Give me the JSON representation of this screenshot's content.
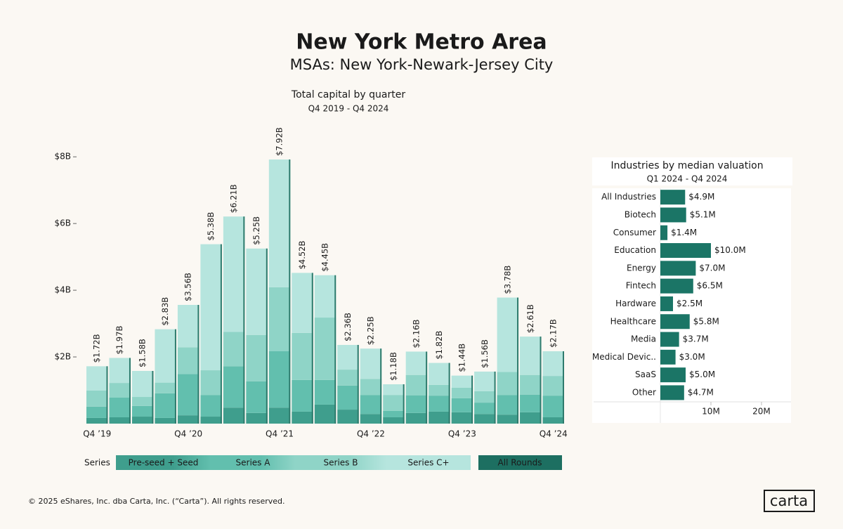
{
  "header": {
    "title": "New York Metro Area",
    "subtitle": "MSAs: New York-Newark-Jersey City"
  },
  "chart_data": [
    {
      "type": "bar",
      "title": "Total capital by quarter",
      "subtitle": "Q4 2019 - Q4 2024",
      "categories": [
        "Q4 ’19",
        null,
        null,
        null,
        "Q4 ’20",
        null,
        null,
        null,
        "Q4 ’21",
        null,
        null,
        null,
        "Q4 ’22",
        null,
        null,
        null,
        "Q4 ’23",
        null,
        null,
        null,
        "Q4 ’24"
      ],
      "series": [
        {
          "name": "Pre-seed + Seed",
          "color": "#3f9e8d",
          "values": [
            0.17,
            0.19,
            0.21,
            0.17,
            0.25,
            0.21,
            0.48,
            0.32,
            0.48,
            0.36,
            0.57,
            0.42,
            0.29,
            0.19,
            0.32,
            0.36,
            0.34,
            0.29,
            0.27,
            0.34,
            0.19
          ]
        },
        {
          "name": "Series A",
          "color": "#62bfae",
          "values": [
            0.34,
            0.59,
            0.32,
            0.74,
            1.24,
            0.65,
            1.24,
            0.95,
            1.69,
            0.95,
            0.74,
            0.72,
            0.57,
            0.19,
            0.53,
            0.48,
            0.42,
            0.34,
            0.59,
            0.53,
            0.65
          ]
        },
        {
          "name": "Series B",
          "color": "#8fd4c7",
          "values": [
            0.48,
            0.44,
            0.27,
            0.32,
            0.8,
            0.74,
            1.03,
            1.39,
            1.92,
            1.41,
            1.87,
            0.48,
            0.48,
            0.48,
            0.61,
            0.32,
            0.32,
            0.34,
            0.69,
            0.59,
            0.59
          ]
        },
        {
          "name": "Series C+",
          "color": "#b6e5de",
          "values": [
            0.73,
            0.75,
            0.78,
            1.6,
            1.27,
            3.78,
            3.46,
            2.59,
            3.83,
            1.8,
            1.27,
            0.74,
            0.91,
            0.32,
            0.7,
            0.66,
            0.36,
            0.59,
            2.23,
            1.15,
            0.74
          ]
        }
      ],
      "total_values": [
        1.72,
        1.97,
        1.58,
        2.83,
        3.56,
        5.38,
        6.21,
        5.25,
        7.92,
        4.52,
        4.45,
        2.36,
        2.25,
        1.18,
        2.16,
        1.82,
        1.44,
        1.56,
        3.78,
        2.61,
        2.17
      ],
      "total_labels": [
        "$1.72B",
        "$1.97B",
        "$1.58B",
        "$2.83B",
        "$3.56B",
        "$5.38B",
        "$6.21B",
        "$5.25B",
        "$7.92B",
        "$4.52B",
        "$4.45B",
        "$2.36B",
        "$2.25B",
        "$1.18B",
        "$2.16B",
        "$1.82B",
        "$1.44B",
        "$1.56B",
        "$3.78B",
        "$2.61B",
        "$2.17B"
      ],
      "ylim": [
        0,
        8.7
      ],
      "yticks": [
        {
          "value": 2,
          "label": "$2B"
        },
        {
          "value": 4,
          "label": "$4B"
        },
        {
          "value": 6,
          "label": "$6B"
        },
        {
          "value": 8,
          "label": "$8B"
        }
      ],
      "legend_title": "Series",
      "toggle": {
        "label": "All Rounds",
        "color": "#1d6f61"
      }
    },
    {
      "type": "barh",
      "title": "Industries by median valuation",
      "subtitle": "Q1 2024 - Q4 2024",
      "categories": [
        "All Industries",
        "Biotech",
        "Consumer",
        "Education",
        "Energy",
        "Fintech",
        "Hardware",
        "Healthcare",
        "Media",
        "Medical Devic..",
        "SaaS",
        "Other"
      ],
      "values": [
        4.9,
        5.1,
        1.4,
        10.0,
        7.0,
        6.5,
        2.5,
        5.8,
        3.7,
        3.0,
        5.0,
        4.7
      ],
      "value_labels": [
        "$4.9M",
        "$5.1M",
        "$1.4M",
        "$10.0M",
        "$7.0M",
        "$6.5M",
        "$2.5M",
        "$5.8M",
        "$3.7M",
        "$3.0M",
        "$5.0M",
        "$4.7M"
      ],
      "color": "#1b7566",
      "xlim": [
        0,
        25.7
      ],
      "xticks": [
        {
          "value": 10,
          "label": "10M"
        },
        {
          "value": 20,
          "label": "20M"
        }
      ]
    }
  ],
  "footer": "© 2025 eShares, Inc. dba Carta, Inc. (“Carta”). All rights reserved.",
  "logo": "carta"
}
